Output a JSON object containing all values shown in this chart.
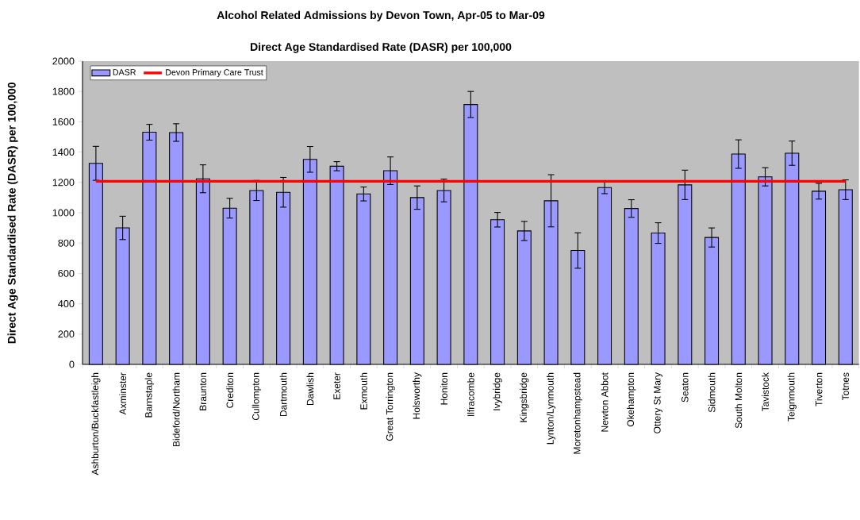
{
  "chart_data": {
    "type": "bar",
    "title": "Alcohol Related Admissions by Devon Town, Apr-05 to Mar-09",
    "subtitle": "Direct Age Standardised Rate (DASR) per 100,000",
    "ylabel": "Direct Age Standardised Rate (DASR) per 100,000",
    "categories": [
      "Ashburton/Buckfastleigh",
      "Axminster",
      "Barnstaple",
      "Bideford/Northam",
      "Braunton",
      "Crediton",
      "Cullompton",
      "Dartmouth",
      "Dawlish",
      "Exeter",
      "Exmouth",
      "Great Torrington",
      "Holsworthy",
      "Honiton",
      "Ilfracombe",
      "Ivybridge",
      "Kingsbridge",
      "Lynton/Lynmouth",
      "Moretonhampstead",
      "Newton Abbot",
      "Okehampton",
      "Ottery St Mary",
      "Seaton",
      "Sidmouth",
      "South Molton",
      "Tavistock",
      "Teignmouth",
      "Tiverton",
      "Totnes"
    ],
    "series": [
      {
        "name": "DASR",
        "color": "#9999ff",
        "values": [
          1326,
          900,
          1531,
          1529,
          1224,
          1030,
          1147,
          1135,
          1352,
          1307,
          1124,
          1277,
          1100,
          1147,
          1714,
          954,
          880,
          1079,
          751,
          1166,
          1028,
          866,
          1184,
          837,
          1387,
          1237,
          1393,
          1142,
          1152
        ],
        "errors": [
          112,
          77,
          52,
          58,
          92,
          65,
          66,
          98,
          85,
          30,
          46,
          91,
          77,
          75,
          86,
          48,
          63,
          172,
          117,
          40,
          58,
          68,
          97,
          63,
          94,
          60,
          80,
          52,
          65
        ]
      }
    ],
    "ref_lines": [
      {
        "axis": "y",
        "value": 1207,
        "label": "Devon Primary Care Trust",
        "color": "#ff0000"
      }
    ],
    "ylim": [
      0,
      2000
    ],
    "yticks": [
      0,
      200,
      400,
      600,
      800,
      1000,
      1200,
      1400,
      1600,
      1800,
      2000
    ],
    "legend": "top left",
    "grid": false
  }
}
